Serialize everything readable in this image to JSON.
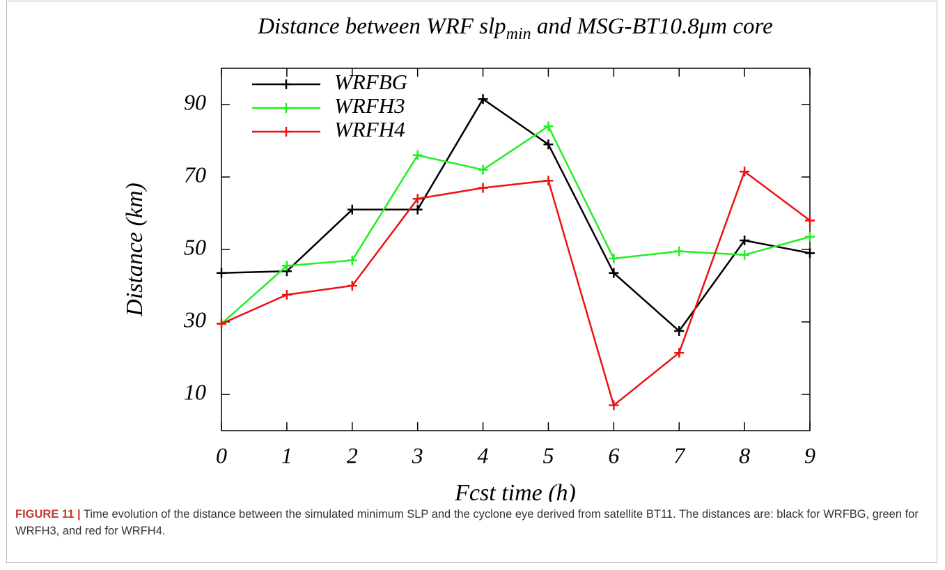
{
  "chart_data": {
    "type": "line",
    "title": [
      "Distance between WRF slp",
      "min",
      " and MSG-BT10.8μm core"
    ],
    "x_label": "Fcst time (h)",
    "y_label": "Distance (km)",
    "x": [
      0,
      1,
      2,
      3,
      4,
      5,
      6,
      7,
      8,
      9
    ],
    "xlim": [
      0,
      9
    ],
    "xticks": [
      0,
      1,
      2,
      3,
      4,
      5,
      6,
      7,
      8,
      9
    ],
    "ylim": [
      0,
      100
    ],
    "yticks": [
      10,
      30,
      50,
      70,
      90
    ],
    "grid": false,
    "legend": "upper-left",
    "series": [
      {
        "name": "WRFBG",
        "color": "#000000",
        "values": [
          43.5,
          44,
          61,
          61,
          91.5,
          79,
          43.5,
          27.5,
          52.5,
          49
        ]
      },
      {
        "name": "WRFH3",
        "color": "#22ee22",
        "values": [
          29.5,
          45.5,
          47,
          76,
          72,
          84,
          47.5,
          49.5,
          48.5,
          53.5
        ]
      },
      {
        "name": "WRFH4",
        "color": "#ee1111",
        "values": [
          29.5,
          37.5,
          40,
          64,
          67,
          69,
          7,
          21.5,
          71.5,
          58
        ]
      }
    ]
  },
  "caption": {
    "label": "FIGURE 11 |",
    "text": "Time evolution of the distance between the simulated minimum SLP and the cyclone eye derived from satellite BT11. The distances are: black for WRFBG, green for WRFH3, and red for WRFH4."
  }
}
